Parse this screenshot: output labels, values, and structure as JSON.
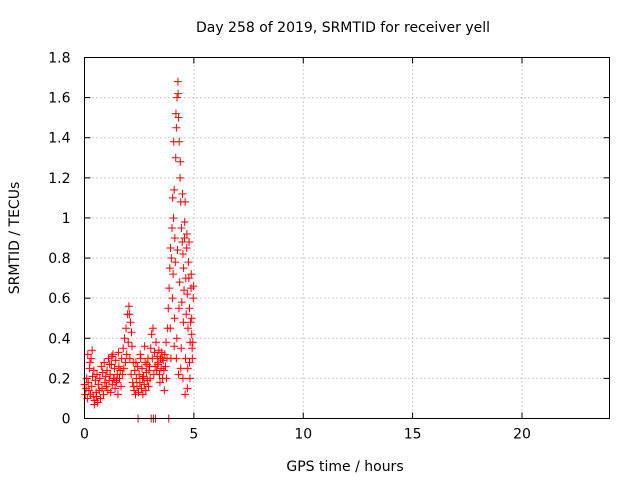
{
  "chart_data": {
    "type": "scatter",
    "title": "Day 258 of 2019, SRMTID for receiver yell",
    "xlabel": "GPS time / hours",
    "ylabel": "SRMTID / TECUs",
    "xlim": [
      0,
      24
    ],
    "ylim": [
      0,
      1.8
    ],
    "xticks": [
      0,
      5,
      10,
      15,
      20
    ],
    "yticks": [
      0,
      0.2,
      0.4,
      0.6,
      0.8,
      1,
      1.2,
      1.4,
      1.6,
      1.8
    ],
    "xtick_labels": [
      "0",
      "5",
      "10",
      "15",
      "20"
    ],
    "ytick_labels": [
      "0",
      "0.2",
      "0.4",
      "0.6",
      "0.8",
      "1",
      "1.2",
      "1.4",
      "1.6",
      "1.8"
    ],
    "grid": true,
    "grid_style": "dotted",
    "marker": "+",
    "series": [
      {
        "name": "SRMTID",
        "color": "#ff0000",
        "points": [
          [
            0.0,
            0.17
          ],
          [
            0.03,
            0.12
          ],
          [
            0.07,
            0.15
          ],
          [
            0.1,
            0.2
          ],
          [
            0.13,
            0.1
          ],
          [
            0.17,
            0.18
          ],
          [
            0.2,
            0.14
          ],
          [
            0.23,
            0.25
          ],
          [
            0.27,
            0.12
          ],
          [
            0.3,
            0.3
          ],
          [
            0.33,
            0.16
          ],
          [
            0.37,
            0.21
          ],
          [
            0.4,
            0.11
          ],
          [
            0.43,
            0.24
          ],
          [
            0.47,
            0.09
          ],
          [
            0.5,
            0.19
          ],
          [
            0.53,
            0.13
          ],
          [
            0.57,
            0.22
          ],
          [
            0.6,
            0.08
          ],
          [
            0.63,
            0.17
          ],
          [
            0.67,
            0.14
          ],
          [
            0.7,
            0.2
          ],
          [
            0.73,
            0.1
          ],
          [
            0.77,
            0.26
          ],
          [
            0.8,
            0.15
          ],
          [
            0.83,
            0.23
          ],
          [
            0.87,
            0.12
          ],
          [
            0.9,
            0.28
          ],
          [
            0.93,
            0.18
          ],
          [
            0.97,
            0.21
          ],
          [
            1.0,
            0.16
          ],
          [
            1.03,
            0.24
          ],
          [
            1.07,
            0.14
          ],
          [
            1.1,
            0.3
          ],
          [
            1.13,
            0.19
          ],
          [
            1.17,
            0.22
          ],
          [
            1.2,
            0.13
          ],
          [
            1.23,
            0.27
          ],
          [
            1.27,
            0.17
          ],
          [
            1.3,
            0.32
          ],
          [
            1.33,
            0.2
          ],
          [
            1.37,
            0.25
          ],
          [
            1.4,
            0.15
          ],
          [
            1.43,
            0.29
          ],
          [
            1.47,
            0.18
          ],
          [
            1.5,
            0.22
          ],
          [
            1.53,
            0.12
          ],
          [
            1.57,
            0.26
          ],
          [
            1.6,
            0.2
          ],
          [
            1.63,
            0.24
          ],
          [
            1.67,
            0.16
          ],
          [
            1.7,
            0.3
          ],
          [
            1.73,
            0.22
          ],
          [
            1.77,
            0.35
          ],
          [
            1.8,
            0.25
          ],
          [
            1.83,
            0.4
          ],
          [
            1.87,
            0.28
          ],
          [
            1.9,
            0.45
          ],
          [
            1.93,
            0.32
          ],
          [
            1.97,
            0.52
          ],
          [
            2.0,
            0.38
          ],
          [
            2.03,
            0.56
          ],
          [
            2.07,
            0.3
          ],
          [
            2.1,
            0.48
          ],
          [
            2.13,
            0.22
          ],
          [
            2.17,
            0.36
          ],
          [
            2.2,
            0.18
          ],
          [
            2.23,
            0.28
          ],
          [
            2.27,
            0.14
          ],
          [
            2.3,
            0.24
          ],
          [
            2.33,
            0.12
          ],
          [
            2.37,
            0.2
          ],
          [
            2.4,
            0.16
          ],
          [
            2.43,
            0.26
          ],
          [
            2.47,
            0.13
          ],
          [
            2.5,
            0.22
          ],
          [
            2.53,
            0.18
          ],
          [
            2.57,
            0.3
          ],
          [
            2.6,
            0.15
          ],
          [
            2.63,
            0.25
          ],
          [
            2.67,
            0.12
          ],
          [
            2.7,
            0.21
          ],
          [
            2.73,
            0.17
          ],
          [
            2.77,
            0.28
          ],
          [
            2.8,
            0.14
          ],
          [
            2.83,
            0.23
          ],
          [
            2.87,
            0.19
          ],
          [
            2.9,
            0.3
          ],
          [
            2.93,
            0.16
          ],
          [
            2.97,
            0.26
          ],
          [
            3.0,
            0.2
          ],
          [
            3.03,
            0.35
          ],
          [
            3.07,
            0.42
          ],
          [
            3.1,
            0.3
          ],
          [
            3.13,
            0.45
          ],
          [
            3.17,
            0.22
          ],
          [
            3.2,
            0.33
          ],
          [
            3.23,
            0.26
          ],
          [
            3.27,
            0.38
          ],
          [
            3.3,
            0.24
          ],
          [
            3.33,
            0.31
          ],
          [
            3.37,
            0.28
          ],
          [
            3.4,
            0.34
          ],
          [
            3.43,
            0.22
          ],
          [
            3.47,
            0.3
          ],
          [
            3.5,
            0.25
          ],
          [
            3.53,
            0.33
          ],
          [
            3.57,
            0.2
          ],
          [
            3.6,
            0.29
          ],
          [
            3.63,
            0.24
          ],
          [
            3.67,
            0.32
          ],
          [
            3.7,
            0.26
          ],
          [
            3.73,
            0.38
          ],
          [
            3.77,
            0.3
          ],
          [
            3.8,
            0.45
          ],
          [
            3.83,
            0.55
          ],
          [
            3.87,
            0.65
          ],
          [
            3.9,
            0.75
          ],
          [
            3.93,
            0.85
          ],
          [
            3.97,
            0.8
          ],
          [
            4.0,
            0.95
          ],
          [
            4.03,
            1.1
          ],
          [
            4.07,
            1.0
          ],
          [
            4.1,
            1.14
          ],
          [
            4.13,
            0.9
          ],
          [
            4.17,
            1.3
          ],
          [
            4.2,
            1.45
          ],
          [
            4.23,
            1.6
          ],
          [
            4.27,
            1.68
          ],
          [
            4.3,
            1.5
          ],
          [
            4.33,
            1.38
          ],
          [
            4.37,
            1.2
          ],
          [
            4.4,
            1.08
          ],
          [
            4.43,
            0.95
          ],
          [
            4.47,
            0.88
          ],
          [
            4.5,
            0.82
          ],
          [
            4.53,
            0.75
          ],
          [
            4.57,
            0.9
          ],
          [
            4.6,
            1.08
          ],
          [
            4.63,
            0.7
          ],
          [
            4.67,
            0.85
          ],
          [
            4.7,
            0.62
          ],
          [
            4.73,
            0.45
          ],
          [
            4.77,
            0.7
          ],
          [
            4.8,
            0.55
          ],
          [
            4.83,
            0.38
          ],
          [
            4.87,
            0.65
          ],
          [
            4.9,
            0.42
          ],
          [
            4.93,
            0.3
          ],
          [
            4.97,
            0.6
          ],
          [
            4.02,
            0.6
          ],
          [
            4.12,
            0.5
          ],
          [
            4.22,
            0.4
          ],
          [
            4.32,
            0.55
          ],
          [
            4.42,
            0.35
          ],
          [
            4.52,
            0.48
          ],
          [
            4.62,
            0.3
          ],
          [
            4.72,
            0.25
          ],
          [
            4.82,
            0.2
          ],
          [
            4.92,
            0.35
          ],
          [
            3.92,
            0.45
          ],
          [
            4.05,
            0.72
          ],
          [
            4.15,
            0.78
          ],
          [
            4.25,
            0.84
          ],
          [
            4.35,
            0.68
          ],
          [
            4.45,
            0.58
          ],
          [
            4.55,
            0.64
          ],
          [
            4.65,
            0.52
          ],
          [
            4.75,
            0.78
          ],
          [
            4.85,
            0.48
          ],
          [
            4.08,
            1.38
          ],
          [
            4.18,
            1.52
          ],
          [
            4.28,
            1.62
          ],
          [
            4.38,
            1.28
          ],
          [
            4.48,
            1.12
          ],
          [
            4.58,
            0.98
          ],
          [
            4.68,
            0.92
          ],
          [
            4.78,
            0.88
          ],
          [
            4.88,
            0.72
          ],
          [
            4.98,
            0.66
          ],
          [
            0.15,
            0.32
          ],
          [
            0.25,
            0.28
          ],
          [
            0.35,
            0.34
          ],
          [
            0.45,
            0.07
          ],
          [
            0.55,
            0.11
          ],
          [
            1.15,
            0.27
          ],
          [
            1.25,
            0.31
          ],
          [
            1.35,
            0.2
          ],
          [
            1.45,
            0.19
          ],
          [
            1.55,
            0.33
          ],
          [
            2.05,
            0.52
          ],
          [
            2.15,
            0.43
          ],
          [
            2.25,
            0.16
          ],
          [
            2.35,
            0.28
          ],
          [
            2.45,
            0.0
          ],
          [
            2.55,
            0.32
          ],
          [
            2.65,
            0.2
          ],
          [
            2.75,
            0.36
          ],
          [
            2.85,
            0.27
          ],
          [
            2.95,
            0.24
          ],
          [
            3.05,
            0.0
          ],
          [
            3.15,
            0.0
          ],
          [
            3.25,
            0.0
          ],
          [
            3.85,
            0.0
          ],
          [
            3.35,
            0.27
          ],
          [
            3.45,
            0.18
          ],
          [
            3.55,
            0.3
          ],
          [
            3.65,
            0.14
          ],
          [
            3.75,
            0.2
          ],
          [
            3.95,
            0.3
          ],
          [
            4.6,
            0.12
          ],
          [
            4.7,
            0.15
          ],
          [
            4.8,
            0.28
          ],
          [
            4.9,
            0.5
          ],
          [
            4.95,
            0.38
          ],
          [
            4.5,
            0.2
          ],
          [
            4.4,
            0.25
          ],
          [
            4.3,
            0.22
          ],
          [
            4.2,
            0.3
          ],
          [
            4.1,
            0.36
          ]
        ]
      }
    ]
  }
}
